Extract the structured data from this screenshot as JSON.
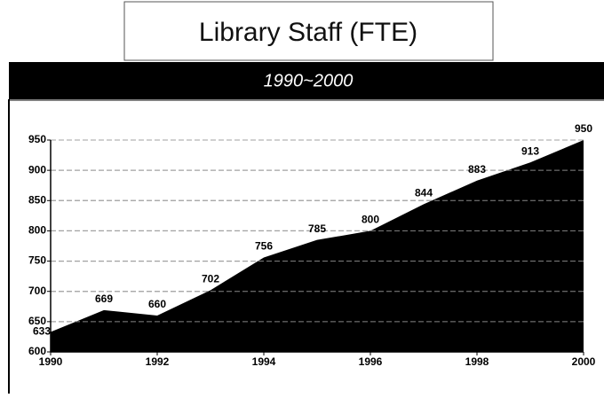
{
  "chart_data": {
    "type": "area",
    "title": "Library Staff (FTE)",
    "subtitle": "1990~2000",
    "x": [
      1990,
      1991,
      1992,
      1993,
      1994,
      1995,
      1996,
      1997,
      1998,
      1999,
      2000
    ],
    "series": [
      {
        "name": "Library Staff (FTE)",
        "color": "#000000",
        "values": [
          633,
          669,
          660,
          702,
          756,
          785,
          800,
          844,
          883,
          913,
          950
        ]
      }
    ],
    "xlim": [
      1990,
      2000
    ],
    "xticks": [
      1990,
      1992,
      1994,
      1996,
      1998,
      2000
    ],
    "ylim": [
      600,
      950
    ],
    "yticks": [
      600,
      650,
      700,
      750,
      800,
      850,
      900,
      950
    ],
    "grid": true
  }
}
